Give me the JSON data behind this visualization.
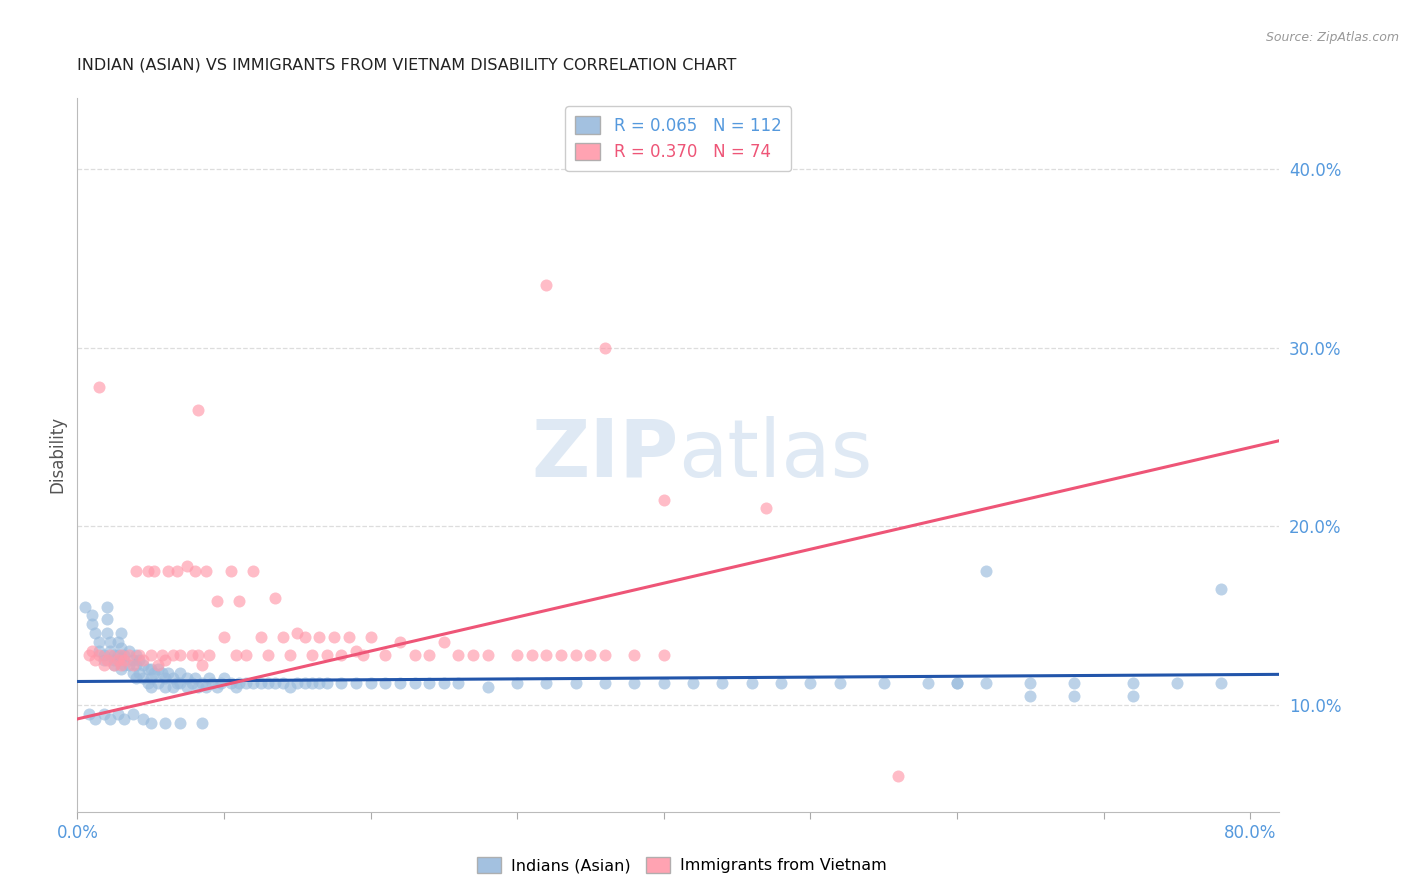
{
  "title": "INDIAN (ASIAN) VS IMMIGRANTS FROM VIETNAM DISABILITY CORRELATION CHART",
  "source": "Source: ZipAtlas.com",
  "ylabel": "Disability",
  "xlim": [
    0.0,
    0.82
  ],
  "ylim": [
    0.04,
    0.44
  ],
  "blue_color": "#99BBDD",
  "pink_color": "#FF99AA",
  "blue_line_color": "#2255AA",
  "pink_line_color": "#EE5577",
  "legend_R_blue": "0.065",
  "legend_N_blue": "112",
  "legend_R_pink": "0.370",
  "legend_N_pink": "74",
  "legend_label_blue": "Indians (Asian)",
  "legend_label_pink": "Immigrants from Vietnam",
  "watermark": "ZIPatlas",
  "axis_label_color": "#5599DD",
  "grid_color": "#DDDDDD",
  "background_color": "#FFFFFF",
  "title_color": "#222222",
  "blue_trend_x0": 0.0,
  "blue_trend_x1": 0.82,
  "blue_trend_y0": 0.113,
  "blue_trend_y1": 0.117,
  "pink_trend_x0": 0.0,
  "pink_trend_x1": 0.82,
  "pink_trend_y0": 0.092,
  "pink_trend_y1": 0.248,
  "blue_x": [
    0.005,
    0.01,
    0.01,
    0.012,
    0.015,
    0.015,
    0.018,
    0.018,
    0.02,
    0.02,
    0.02,
    0.022,
    0.022,
    0.025,
    0.025,
    0.025,
    0.028,
    0.028,
    0.03,
    0.03,
    0.03,
    0.03,
    0.032,
    0.032,
    0.035,
    0.035,
    0.038,
    0.038,
    0.04,
    0.04,
    0.04,
    0.042,
    0.042,
    0.045,
    0.045,
    0.048,
    0.048,
    0.05,
    0.05,
    0.05,
    0.052,
    0.055,
    0.055,
    0.058,
    0.06,
    0.06,
    0.062,
    0.065,
    0.065,
    0.068,
    0.07,
    0.07,
    0.075,
    0.075,
    0.078,
    0.08,
    0.082,
    0.085,
    0.088,
    0.09,
    0.092,
    0.095,
    0.098,
    0.1,
    0.105,
    0.108,
    0.11,
    0.115,
    0.12,
    0.125,
    0.13,
    0.135,
    0.14,
    0.145,
    0.15,
    0.155,
    0.16,
    0.165,
    0.17,
    0.18,
    0.19,
    0.2,
    0.21,
    0.22,
    0.23,
    0.24,
    0.25,
    0.26,
    0.28,
    0.3,
    0.32,
    0.34,
    0.36,
    0.38,
    0.4,
    0.42,
    0.44,
    0.46,
    0.48,
    0.5,
    0.52,
    0.55,
    0.58,
    0.6,
    0.62,
    0.65,
    0.68,
    0.72,
    0.75,
    0.78
  ],
  "blue_y": [
    0.155,
    0.15,
    0.145,
    0.14,
    0.135,
    0.13,
    0.128,
    0.125,
    0.155,
    0.148,
    0.14,
    0.135,
    0.13,
    0.128,
    0.125,
    0.122,
    0.135,
    0.128,
    0.14,
    0.132,
    0.126,
    0.12,
    0.128,
    0.122,
    0.13,
    0.122,
    0.125,
    0.118,
    0.128,
    0.122,
    0.115,
    0.125,
    0.118,
    0.122,
    0.115,
    0.12,
    0.112,
    0.12,
    0.115,
    0.11,
    0.118,
    0.12,
    0.112,
    0.118,
    0.115,
    0.11,
    0.118,
    0.115,
    0.11,
    0.112,
    0.118,
    0.112,
    0.115,
    0.11,
    0.112,
    0.115,
    0.11,
    0.112,
    0.11,
    0.115,
    0.112,
    0.11,
    0.112,
    0.115,
    0.112,
    0.11,
    0.112,
    0.112,
    0.112,
    0.112,
    0.112,
    0.112,
    0.112,
    0.11,
    0.112,
    0.112,
    0.112,
    0.112,
    0.112,
    0.112,
    0.112,
    0.112,
    0.112,
    0.112,
    0.112,
    0.112,
    0.112,
    0.112,
    0.11,
    0.112,
    0.112,
    0.112,
    0.112,
    0.112,
    0.112,
    0.112,
    0.112,
    0.112,
    0.112,
    0.112,
    0.112,
    0.112,
    0.112,
    0.112,
    0.112,
    0.112,
    0.112,
    0.112,
    0.112,
    0.112
  ],
  "blue_x_extra": [
    0.008,
    0.012,
    0.018,
    0.022,
    0.028,
    0.032,
    0.038,
    0.045,
    0.05,
    0.06,
    0.07,
    0.085,
    0.6,
    0.62,
    0.65,
    0.68,
    0.72,
    0.78
  ],
  "blue_y_extra": [
    0.095,
    0.092,
    0.095,
    0.092,
    0.095,
    0.092,
    0.095,
    0.092,
    0.09,
    0.09,
    0.09,
    0.09,
    0.112,
    0.175,
    0.105,
    0.105,
    0.105,
    0.165
  ],
  "pink_x": [
    0.008,
    0.01,
    0.012,
    0.015,
    0.018,
    0.02,
    0.022,
    0.025,
    0.028,
    0.03,
    0.03,
    0.032,
    0.035,
    0.038,
    0.04,
    0.042,
    0.045,
    0.048,
    0.05,
    0.052,
    0.055,
    0.058,
    0.06,
    0.062,
    0.065,
    0.068,
    0.07,
    0.075,
    0.078,
    0.08,
    0.082,
    0.085,
    0.088,
    0.09,
    0.095,
    0.1,
    0.105,
    0.108,
    0.11,
    0.115,
    0.12,
    0.125,
    0.13,
    0.135,
    0.14,
    0.145,
    0.15,
    0.155,
    0.16,
    0.165,
    0.17,
    0.175,
    0.18,
    0.185,
    0.19,
    0.195,
    0.2,
    0.21,
    0.22,
    0.23,
    0.24,
    0.25,
    0.26,
    0.27,
    0.28,
    0.3,
    0.31,
    0.32,
    0.33,
    0.34,
    0.35,
    0.36,
    0.38,
    0.4
  ],
  "pink_y": [
    0.128,
    0.13,
    0.125,
    0.128,
    0.122,
    0.125,
    0.128,
    0.122,
    0.125,
    0.128,
    0.122,
    0.125,
    0.128,
    0.122,
    0.175,
    0.128,
    0.125,
    0.175,
    0.128,
    0.175,
    0.122,
    0.128,
    0.125,
    0.175,
    0.128,
    0.175,
    0.128,
    0.178,
    0.128,
    0.175,
    0.128,
    0.122,
    0.175,
    0.128,
    0.158,
    0.138,
    0.175,
    0.128,
    0.158,
    0.128,
    0.175,
    0.138,
    0.128,
    0.16,
    0.138,
    0.128,
    0.14,
    0.138,
    0.128,
    0.138,
    0.128,
    0.138,
    0.128,
    0.138,
    0.13,
    0.128,
    0.138,
    0.128,
    0.135,
    0.128,
    0.128,
    0.135,
    0.128,
    0.128,
    0.128,
    0.128,
    0.128,
    0.128,
    0.128,
    0.128,
    0.128,
    0.128,
    0.128,
    0.128
  ],
  "pink_x_extra": [
    0.015,
    0.082,
    0.32,
    0.36,
    0.47,
    0.4,
    0.56
  ],
  "pink_y_extra": [
    0.278,
    0.265,
    0.335,
    0.3,
    0.21,
    0.215,
    0.06
  ]
}
